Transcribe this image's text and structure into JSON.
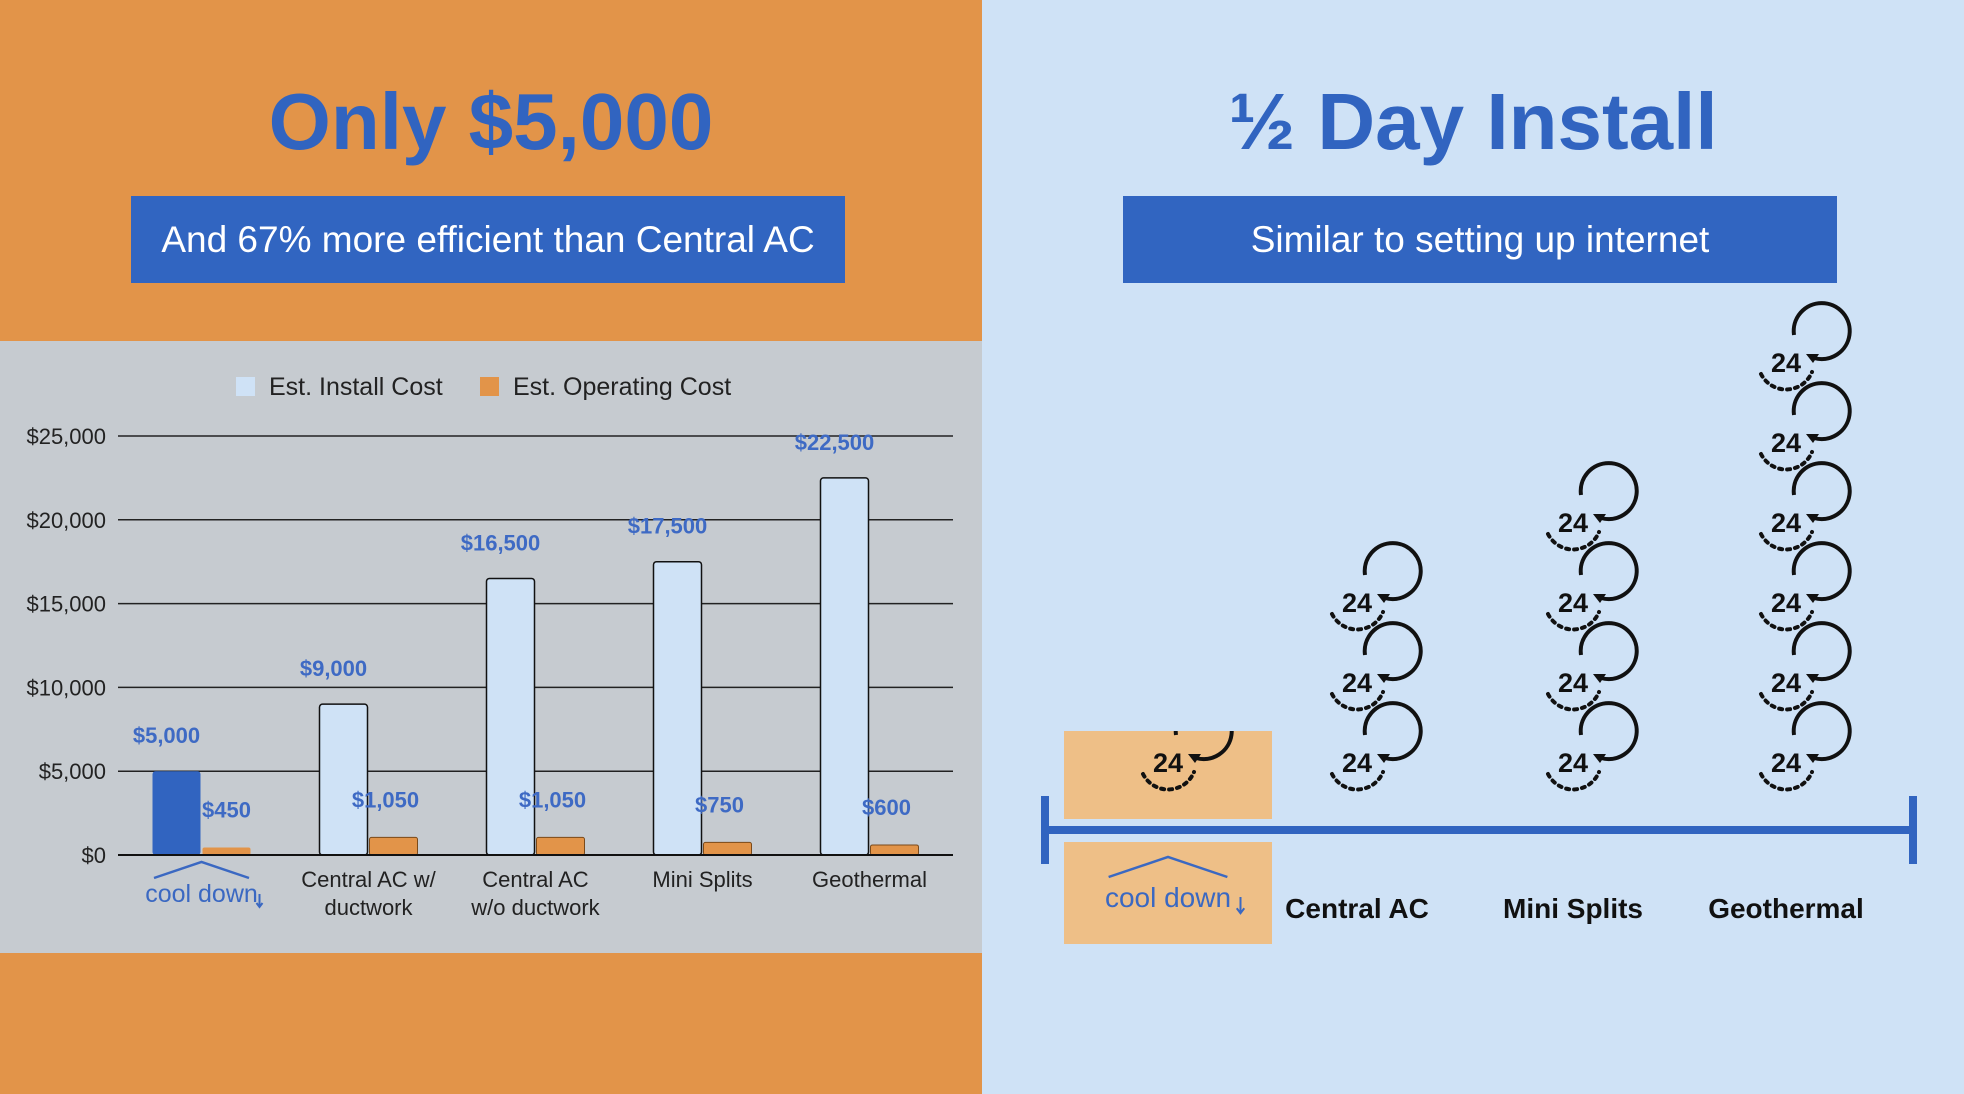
{
  "left": {
    "headline": "Only $5,000",
    "banner": "And 67% more efficient than Central AC"
  },
  "right": {
    "headline": "½ Day Install",
    "banner": "Similar to setting up internet",
    "timeline": {
      "brand": "cool down",
      "categories": [
        "Central AC",
        "Mini Splits",
        "Geothermal"
      ],
      "icon_label": "24",
      "icon": "24-hour-clock-icon",
      "counts": [
        3,
        4,
        6
      ],
      "cool_down_icons": 0.5
    }
  },
  "chart_data": {
    "type": "bar",
    "categories": [
      "cool down",
      "Central AC w/ ductwork",
      "Central AC w/o ductwork",
      "Mini Splits",
      "Geothermal"
    ],
    "category_lines": [
      [
        "cool down"
      ],
      [
        "Central AC w/",
        "ductwork"
      ],
      [
        "Central AC",
        "w/o ductwork"
      ],
      [
        "Mini Splits"
      ],
      [
        "Geothermal"
      ]
    ],
    "series": [
      {
        "name": "Est. Install Cost",
        "values": [
          5000,
          9000,
          16500,
          17500,
          22500
        ],
        "labels": [
          "$5,000",
          "$9,000",
          "$16,500",
          "$17,500",
          "$22,500"
        ]
      },
      {
        "name": "Est. Operating Cost",
        "values": [
          450,
          1050,
          1050,
          750,
          600
        ],
        "labels": [
          "$450",
          "$1,050",
          "$1,050",
          "$750",
          "$600"
        ]
      }
    ],
    "yticks": [
      "$0",
      "$5,000",
      "$10,000",
      "$15,000",
      "$20,000",
      "$25,000"
    ],
    "ylim": [
      0,
      25000
    ],
    "grid": true,
    "legend": "top",
    "colors": {
      "install": "#cfe2f6",
      "install_highlight": "#3164c0",
      "operating": "#e29449"
    }
  },
  "colors": {
    "left_bg": "#e29449",
    "right_bg": "#cfe2f6",
    "accent": "#3164c0",
    "chart_bg": "#c6cbd0"
  }
}
